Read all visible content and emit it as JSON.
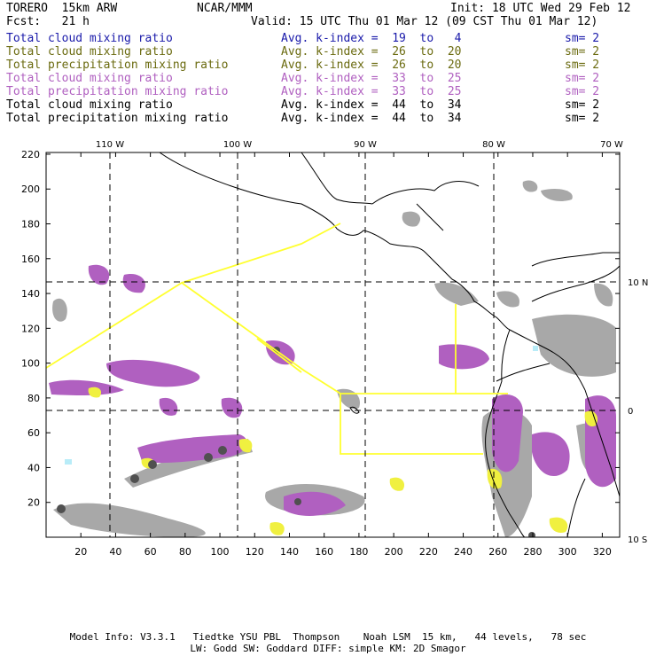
{
  "header": {
    "model": "TORERO  15km ARW",
    "org": "NCAR/MMM",
    "init": "Init: 18 UTC Wed 29 Feb 12",
    "fcst": "Fcst:   21 h",
    "valid": "Valid: 15 UTC Thu 01 Mar 12 (09 CST Thu 01 Mar 12)"
  },
  "legend": [
    {
      "name": "Total cloud mixing ratio",
      "kindex": "Avg. k-index =  19  to   4",
      "sm": "sm= 2",
      "color": "#1a1aaa"
    },
    {
      "name": "Total cloud mixing ratio",
      "kindex": "Avg. k-index =  26  to  20",
      "sm": "sm= 2",
      "color": "#6b6b10"
    },
    {
      "name": "Total precipitation mixing ratio",
      "kindex": "Avg. k-index =  26  to  20",
      "sm": "sm= 2",
      "color": "#6b6b10"
    },
    {
      "name": "Total cloud mixing ratio",
      "kindex": "Avg. k-index =  33  to  25",
      "sm": "sm= 2",
      "color": "#b060c0"
    },
    {
      "name": "Total precipitation mixing ratio",
      "kindex": "Avg. k-index =  33  to  25",
      "sm": "sm= 2",
      "color": "#b060c0"
    },
    {
      "name": "Total cloud mixing ratio",
      "kindex": "Avg. k-index =  44  to  34",
      "sm": "sm= 2",
      "color": "#000000"
    },
    {
      "name": "Total precipitation mixing ratio",
      "kindex": "Avg. k-index =  44  to  34",
      "sm": "sm= 2",
      "color": "#000000"
    }
  ],
  "map": {
    "lon_labels": [
      "110 W",
      "100 W",
      "90 W",
      "80 W",
      "70 W"
    ],
    "lat_labels": [
      "10 N",
      "0",
      "10 S"
    ],
    "x_ticks": [
      "20",
      "40",
      "60",
      "80",
      "100",
      "120",
      "140",
      "160",
      "180",
      "200",
      "220",
      "240",
      "260",
      "280",
      "300",
      "320"
    ],
    "y_ticks": [
      "20",
      "40",
      "60",
      "80",
      "100",
      "120",
      "140",
      "160",
      "180",
      "200",
      "220"
    ],
    "colors": {
      "gray": "#a8a8a8",
      "dark": "#505050",
      "purple": "#b060c0",
      "yellow": "#f0f040",
      "cyan": "#b8ecf8",
      "outline": "#ffff30"
    }
  },
  "footer": {
    "line1": "Model Info: V3.3.1   Tiedtke YSU PBL  Thompson    Noah LSM  15 km,   44 levels,   78 sec",
    "line2": "LW: Godd SW: Goddard DIFF: simple KM: 2D Smagor"
  }
}
